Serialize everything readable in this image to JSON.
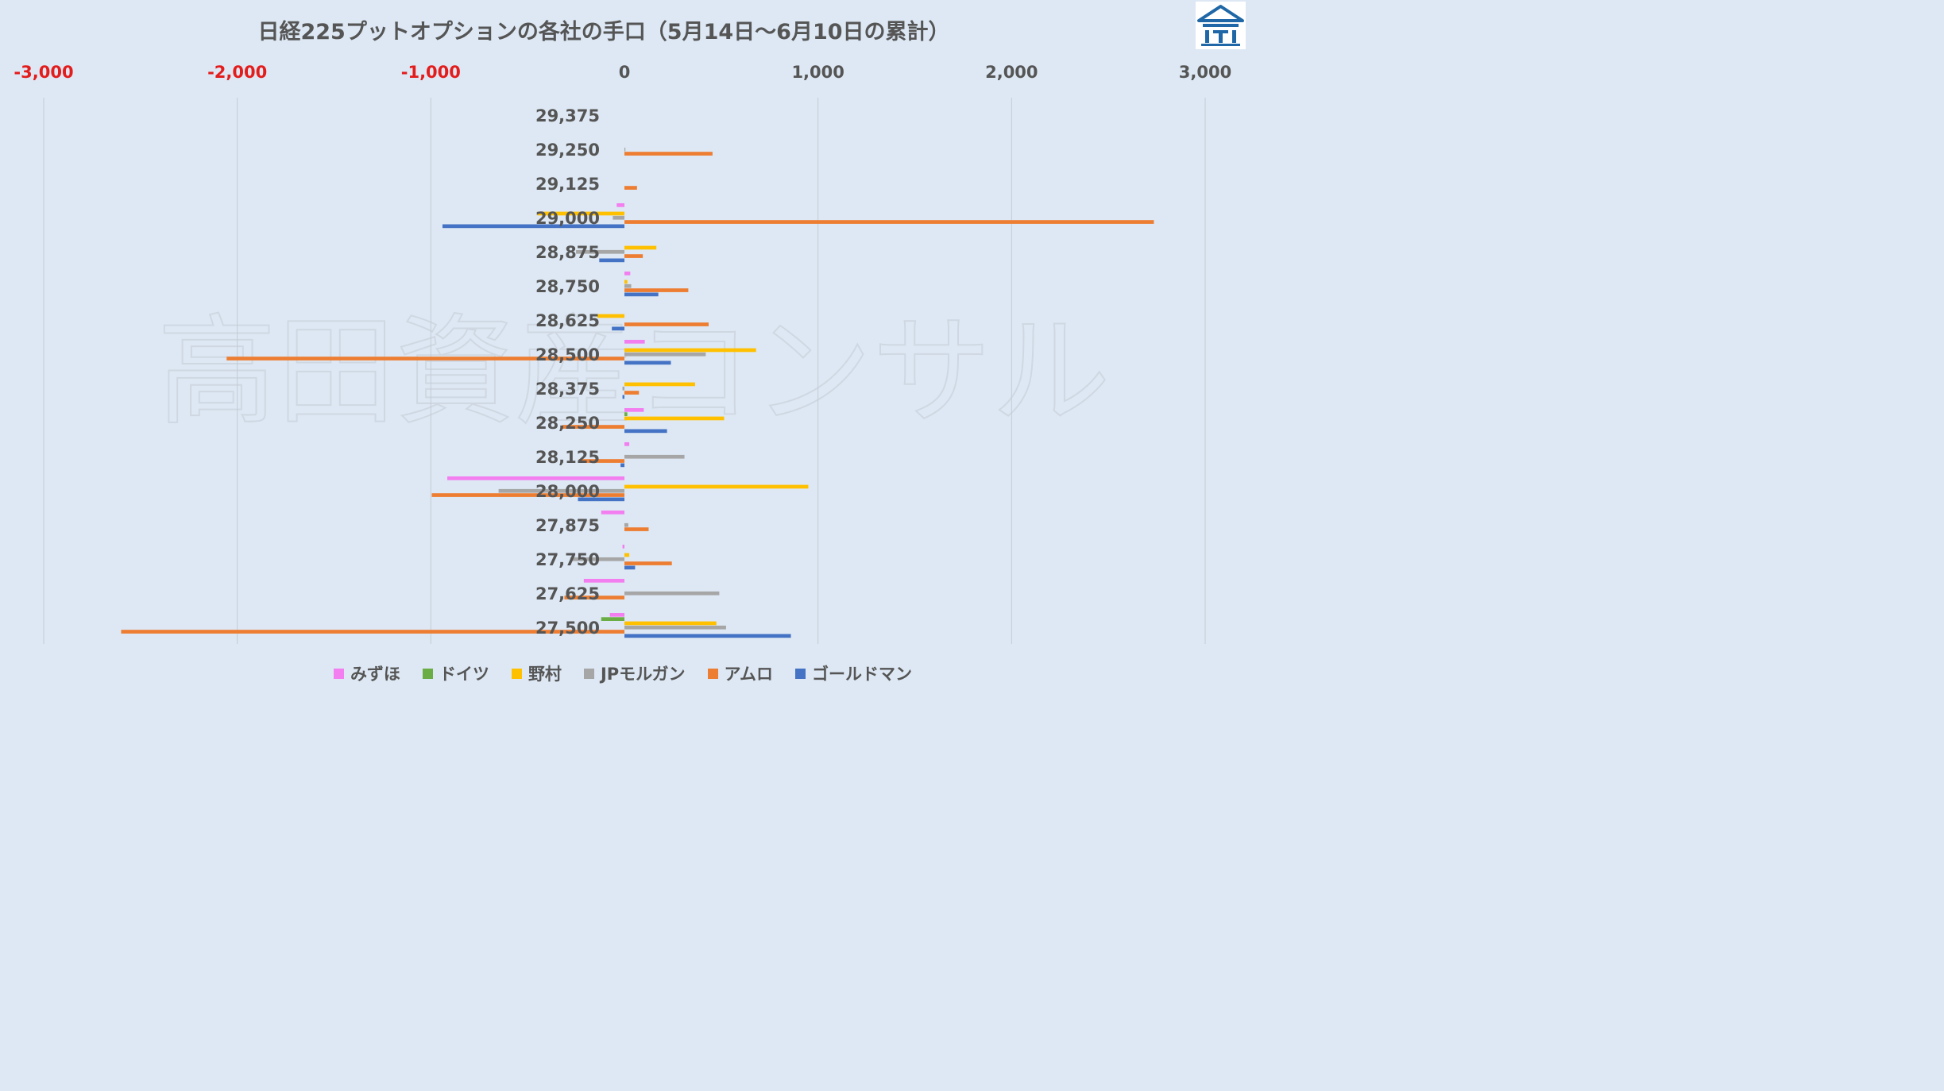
{
  "colors": {
    "background": "#dde8f4",
    "grid": "#c3ccd6",
    "negative_tick": "#e31c1c",
    "text": "#555555",
    "logo": "#1f67a6",
    "watermark": "#cfd8e2"
  },
  "logo": {
    "icon": "house-bank-icon"
  },
  "watermark": "高田資産コンサル",
  "chart_data": {
    "type": "bar",
    "orientation": "horizontal",
    "title": "日経225プットオプションの各社の手口（5月14日〜6月10日の累計）",
    "xlim": [
      -3000,
      3000
    ],
    "xticks": [
      -3000,
      -2000,
      -1000,
      0,
      1000,
      2000,
      3000
    ],
    "xtick_labels": [
      "-3,000",
      "-2,000",
      "-1,000",
      "0",
      "1,000",
      "2,000",
      "3,000"
    ],
    "grid": true,
    "legend_position": "bottom",
    "categories": [
      "29,375",
      "29,250",
      "29,125",
      "29,000",
      "28,875",
      "28,750",
      "28,625",
      "28,500",
      "28,375",
      "28,250",
      "28,125",
      "28,000",
      "27,875",
      "27,750",
      "27,625",
      "27,500"
    ],
    "series": [
      {
        "name": "みずほ",
        "color": "#f27ef0",
        "values": [
          0,
          0,
          0,
          -40,
          0,
          30,
          0,
          105,
          0,
          100,
          25,
          -915,
          -120,
          -10,
          -210,
          -75
        ]
      },
      {
        "name": "ドイツ",
        "color": "#6aad45",
        "values": [
          0,
          0,
          0,
          0,
          0,
          0,
          0,
          0,
          0,
          15,
          0,
          0,
          0,
          0,
          0,
          -120
        ]
      },
      {
        "name": "野村",
        "color": "#ffc000",
        "values": [
          0,
          0,
          0,
          -450,
          165,
          15,
          -140,
          680,
          365,
          515,
          0,
          950,
          0,
          25,
          0,
          475
        ]
      },
      {
        "name": "JPモルガン",
        "color": "#a6a6a6",
        "values": [
          0,
          5,
          0,
          -60,
          -250,
          35,
          0,
          420,
          -10,
          0,
          310,
          -650,
          20,
          -280,
          490,
          525
        ]
      },
      {
        "name": "アムロ",
        "color": "#ed7d31",
        "values": [
          0,
          455,
          65,
          2735,
          95,
          330,
          435,
          -2055,
          75,
          -320,
          -235,
          -995,
          125,
          245,
          -310,
          -2600
        ]
      },
      {
        "name": "ゴールドマン",
        "color": "#4472c4",
        "values": [
          0,
          0,
          0,
          -940,
          -130,
          175,
          -65,
          240,
          -10,
          220,
          -20,
          -240,
          0,
          55,
          0,
          860
        ]
      }
    ]
  }
}
